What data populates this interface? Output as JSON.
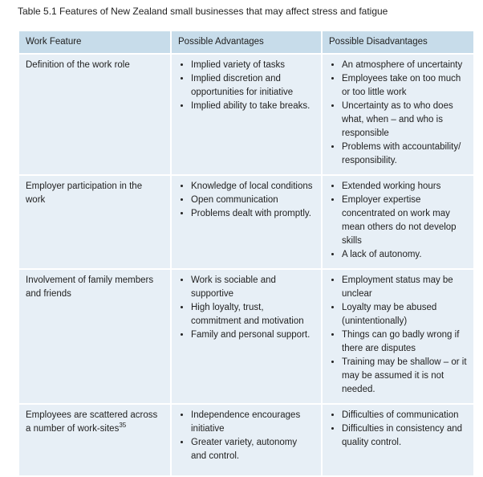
{
  "title": "Table 5.1 Features of New Zealand small businesses that may affect stress and fatigue",
  "table": {
    "header": [
      "Work Feature",
      "Possible Advantages",
      "Possible Disadvantages"
    ],
    "rows": [
      {
        "feature": "Definition of the work role",
        "advantages": [
          "Implied variety of tasks",
          "Implied discretion and opportunities for initiative",
          "Implied ability to take breaks."
        ],
        "disadvantages": [
          "An atmosphere of uncertainty",
          "Employees take on too much or too little work",
          "Uncertainty as to who does what, when – and who is responsible",
          "Problems with accountability/ responsibility."
        ]
      },
      {
        "feature": "Employer participation in the work",
        "advantages": [
          "Knowledge of local conditions",
          "Open communication",
          "Problems dealt with promptly."
        ],
        "disadvantages": [
          "Extended working hours",
          "Employer expertise concentrated on work may mean others do not develop skills",
          "A lack of autonomy."
        ]
      },
      {
        "feature": "Involvement of family members and friends",
        "advantages": [
          "Work is sociable and supportive",
          "High loyalty, trust, commitment and motivation",
          "Family and personal support."
        ],
        "disadvantages": [
          "Employment status may be unclear",
          "Loyalty may be abused (unintentionally)",
          "Things can go badly wrong if there are disputes",
          "Training may be shallow – or it may be assumed it is not needed."
        ]
      },
      {
        "feature": "Employees are scattered across a number of work-sites",
        "footnote": "35",
        "advantages": [
          "Independence encourages initiative",
          "Greater variety, autonomy and control."
        ],
        "disadvantages": [
          "Difficulties of communication",
          "Difficulties in consistency and quality control."
        ]
      }
    ]
  }
}
